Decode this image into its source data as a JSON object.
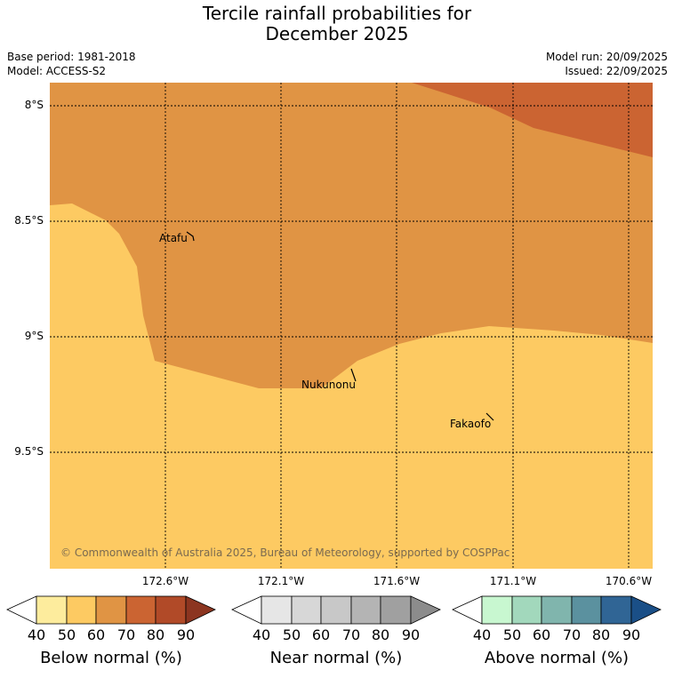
{
  "title_line1": "Tercile rainfall probabilities for",
  "title_line2": "December 2025",
  "base_period": "Base period: 1981-2018",
  "model": "Model: ACCESS-S2",
  "model_run": "Model run: 20/09/2025",
  "issued": "Issued: 22/09/2025",
  "lat_labels": [
    "8°S",
    "8.5°S",
    "9°S",
    "9.5°S"
  ],
  "lon_labels": [
    "172.6°W",
    "172.1°W",
    "171.6°W",
    "171.1°W",
    "170.6°W"
  ],
  "places": [
    "Atafu",
    "Nukunonu",
    "Fakaofo"
  ],
  "copyright": "© Commonwealth of Australia 2025, Bureau of Meteorology, supported by COSPPac",
  "colorbars": [
    {
      "title": "Below normal (%)",
      "ticks": [
        "40",
        "50",
        "60",
        "70",
        "80",
        "90"
      ],
      "colors": [
        "#ffffff",
        "#fdec9d",
        "#fdca62",
        "#e09444",
        "#cb6432",
        "#b14a28",
        "#8c3520"
      ]
    },
    {
      "title": "Near normal (%)",
      "ticks": [
        "40",
        "50",
        "60",
        "70",
        "80",
        "90"
      ],
      "colors": [
        "#ffffff",
        "#e6e6e6",
        "#d7d7d7",
        "#c8c8c8",
        "#b4b4b4",
        "#a0a0a0",
        "#8c8c8c"
      ]
    },
    {
      "title": "Above normal (%)",
      "ticks": [
        "40",
        "50",
        "60",
        "70",
        "80",
        "90"
      ],
      "colors": [
        "#ffffff",
        "#c8f7d0",
        "#a2d8bc",
        "#80b5ad",
        "#5b919f",
        "#306595",
        "#1a4f87"
      ]
    }
  ],
  "map_colors": {
    "band_50_60": "#fdca62",
    "band_60_70": "#e09444",
    "band_70_80": "#cb6432"
  }
}
